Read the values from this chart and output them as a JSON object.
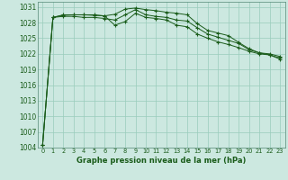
{
  "background_color": "#cce8e0",
  "grid_color": "#99ccbb",
  "line_color": "#1a5c1a",
  "xlabel": "Graphe pression niveau de la mer (hPa)",
  "xlim": [
    -0.5,
    23.5
  ],
  "ylim": [
    1004,
    1032
  ],
  "yticks": [
    1004,
    1007,
    1010,
    1013,
    1016,
    1019,
    1022,
    1025,
    1028,
    1031
  ],
  "xticks": [
    0,
    1,
    2,
    3,
    4,
    5,
    6,
    7,
    8,
    9,
    10,
    11,
    12,
    13,
    14,
    15,
    16,
    17,
    18,
    19,
    20,
    21,
    22,
    23
  ],
  "line1": [
    1004.5,
    1029.0,
    1029.2,
    1029.2,
    1029.0,
    1029.0,
    1028.8,
    1028.5,
    1029.5,
    1030.5,
    1029.5,
    1029.2,
    1029.0,
    1028.5,
    1028.3,
    1027.0,
    1025.8,
    1025.2,
    1024.6,
    1024.0,
    1022.8,
    1022.2,
    1022.0,
    1021.5
  ],
  "line2": [
    1004.5,
    1029.0,
    1029.4,
    1029.5,
    1029.5,
    1029.4,
    1029.3,
    1027.5,
    1028.2,
    1029.8,
    1029.0,
    1028.8,
    1028.5,
    1027.5,
    1027.2,
    1025.8,
    1025.0,
    1024.3,
    1023.8,
    1023.2,
    1022.5,
    1022.0,
    1021.8,
    1021.2
  ],
  "line3": [
    1004.5,
    1029.0,
    1029.5,
    1029.5,
    1029.5,
    1029.5,
    1029.3,
    1029.6,
    1030.6,
    1030.8,
    1030.5,
    1030.3,
    1030.0,
    1029.8,
    1029.5,
    1027.8,
    1026.5,
    1026.0,
    1025.5,
    1024.2,
    1023.0,
    1022.2,
    1021.8,
    1021.0
  ],
  "xlabel_fontsize": 6,
  "ytick_fontsize": 5.5,
  "xtick_fontsize": 4.8
}
